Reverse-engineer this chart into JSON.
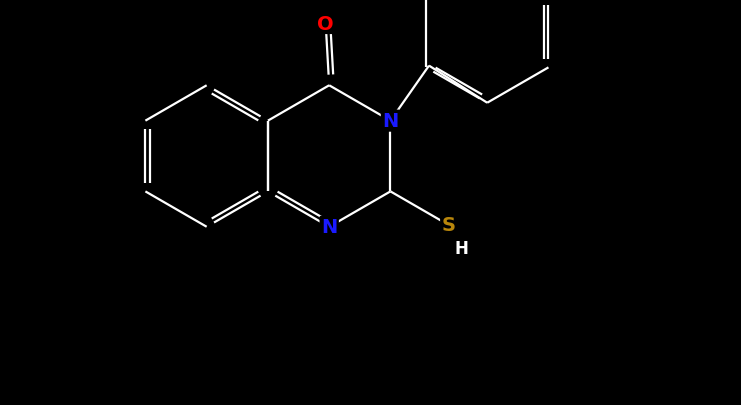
{
  "background_color": "#000000",
  "bond_color": "#ffffff",
  "atom_colors": {
    "O": "#ff0000",
    "N": "#1a1aff",
    "S": "#b8860b",
    "C": "#ffffff",
    "H": "#ffffff"
  },
  "lw": 1.6,
  "fs": 14,
  "figsize": [
    7.41,
    4.06
  ],
  "dpi": 100
}
